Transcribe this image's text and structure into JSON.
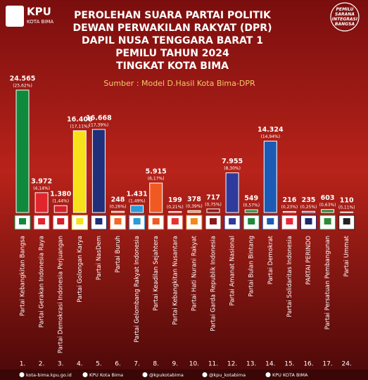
{
  "header": {
    "logo_title": "KPU",
    "logo_subtitle": "KOTA BIMA",
    "stamp": "PEMILU SARANA INTEGRASI BANGSA"
  },
  "chart_data": {
    "type": "bar",
    "title": [
      "PEROLEHAN SUARA PARTAI POLITIK",
      "DEWAN PERWAKILAN RAKYAT (DPR)",
      "DAPIL NUSA TENGGARA BARAT 1",
      "PEMILU TAHUN 2024",
      "TINGKAT KOTA BIMA"
    ],
    "subtitle": "Sumber : Model D.Hasil Kota Bima-DPR",
    "numbers": [
      "1.",
      "2.",
      "3.",
      "4.",
      "5.",
      "6.",
      "7.",
      "8.",
      "9.",
      "10.",
      "11.",
      "12.",
      "13.",
      "14.",
      "15.",
      "16.",
      "17.",
      "24."
    ],
    "categories": [
      "Partai Kebangkitan Bangsa",
      "Partai Gerakan Indonesia Raya",
      "Partai Demokrasi Indonesia Perjuangan",
      "Partai Golongan Karya",
      "Partai NasDem",
      "Partai Buruh",
      "Partai Gelombang Rakyat Indonesia",
      "Partai Keadilan Sejahtera",
      "Partai Kebangkitan Nusantara",
      "Partai Hati Nurani Rakyat",
      "Partai Garda Republik Indonesia",
      "Partai Amanat Nasional",
      "Partai Bulan Bintang",
      "Partai Demokrat",
      "Partai Solidaritas Indonesia",
      "PARTAI PERINDO",
      "Partai Persatuan Pembangunan",
      "Partai Ummat"
    ],
    "values": [
      24565,
      3972,
      1380,
      16408,
      16668,
      248,
      1431,
      5915,
      199,
      378,
      717,
      7955,
      549,
      14324,
      216,
      235,
      603,
      110
    ],
    "value_labels": [
      "24.565",
      "3.972",
      "1.380",
      "16.408",
      "16.668",
      "248",
      "1.431",
      "5.915",
      "199",
      "378",
      "717",
      "7.955",
      "549",
      "14.324",
      "216",
      "235",
      "603",
      "110"
    ],
    "percent_labels": [
      "(25,62%)",
      "(4,14%)",
      "(1,44%)",
      "(17,11%)",
      "(17,39%)",
      "(0,26%)",
      "(1,49%)",
      "(6,17%)",
      "(0,21%)",
      "(0,39%)",
      "(0,75%)",
      "(8,30%)",
      "(0,57%)",
      "(14,94%)",
      "(0,23%)",
      "(0,25%)",
      "(0,63%)",
      "(0,11%)"
    ],
    "colors": [
      "#0f8a3c",
      "#e0262c",
      "#d4202a",
      "#f7e11a",
      "#1f2f7a",
      "#f26a21",
      "#2a9ad8",
      "#f05a22",
      "#e5322d",
      "#f08a1f",
      "#8b1a1a",
      "#2e3a9c",
      "#1d8a3a",
      "#1c5bb5",
      "#e8283a",
      "#1e2a6e",
      "#2d8a35",
      "#222222"
    ]
  },
  "footer": [
    "kota-bima.kpu.go.id",
    "KPU Kota Bima",
    "@kpukotabima",
    "@kpu_kotabima",
    "KPU KOTA BIMA"
  ]
}
